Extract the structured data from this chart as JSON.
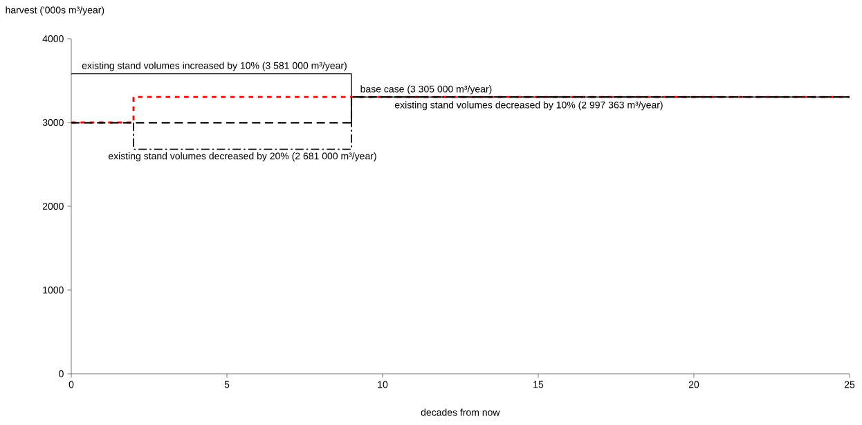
{
  "chart_data": {
    "type": "line",
    "xlabel": "decades from now",
    "ylabel": "harvest ('000s m³/year)",
    "xlim": [
      0,
      25
    ],
    "ylim": [
      0,
      4000
    ],
    "xticks": [
      0,
      5,
      10,
      15,
      20,
      25
    ],
    "yticks": [
      0,
      1000,
      2000,
      3000,
      4000
    ],
    "grid": false,
    "series": [
      {
        "name": "existing stand volumes increased by 10% (3 581 000 m³/year)",
        "color": "#000000",
        "line_style": "solid",
        "x": [
          0,
          9,
          9,
          25
        ],
        "values": [
          3581,
          3581,
          3305,
          3305
        ]
      },
      {
        "name": "base case (3 305 000 m³/year)",
        "color": "#ff0000",
        "line_style": "dotted",
        "x": [
          0,
          2,
          2,
          25
        ],
        "values": [
          3000,
          3000,
          3305,
          3305
        ]
      },
      {
        "name": "existing stand volumes decreased by 10% (2 997 363 m³/year)",
        "color": "#000000",
        "line_style": "dashed",
        "x": [
          0,
          9,
          9,
          25
        ],
        "values": [
          2997,
          2997,
          3305,
          3305
        ]
      },
      {
        "name": "existing stand volumes decreased by 20% (2 681 000 m³/year)",
        "color": "#000000",
        "line_style": "dashdot",
        "x": [
          2,
          2,
          9,
          9,
          25
        ],
        "values": [
          2997,
          2681,
          2681,
          3305,
          3305
        ]
      }
    ]
  }
}
